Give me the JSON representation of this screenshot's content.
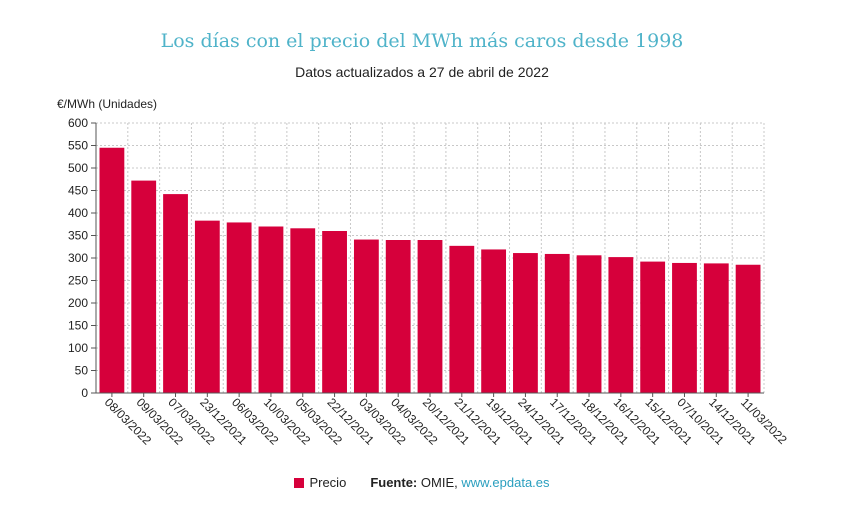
{
  "chart_data": {
    "type": "bar",
    "title": "Los días con el precio del MWh más caros desde 1998",
    "subtitle": "Datos actualizados a 27 de abril de 2022",
    "ylabel": "€/MWh (Unidades)",
    "ylim": [
      0,
      600
    ],
    "yticks": [
      0,
      50,
      100,
      150,
      200,
      250,
      300,
      350,
      400,
      450,
      500,
      550,
      600
    ],
    "grid": true,
    "legend_position": "bottom",
    "categories": [
      "08/03/2022",
      "09/03/2022",
      "07/03/2022",
      "23/12/2021",
      "06/03/2022",
      "10/03/2022",
      "05/03/2022",
      "22/12/2021",
      "03/03/2022",
      "04/03/2022",
      "20/12/2021",
      "21/12/2021",
      "19/12/2021",
      "24/12/2021",
      "17/12/2021",
      "18/12/2021",
      "16/12/2021",
      "15/12/2021",
      "07/10/2021",
      "14/12/2021",
      "11/03/2022"
    ],
    "series": [
      {
        "name": "Precio",
        "color": "#d6003b",
        "values": [
          545,
          472,
          442,
          383,
          379,
          370,
          366,
          360,
          341,
          340,
          340,
          327,
          319,
          311,
          309,
          306,
          302,
          292,
          289,
          288,
          285
        ]
      }
    ]
  },
  "footer": {
    "legend_label": "Precio",
    "source_label": "Fuente:",
    "source_name": "OMIE,",
    "source_link": "www.epdata.es"
  }
}
